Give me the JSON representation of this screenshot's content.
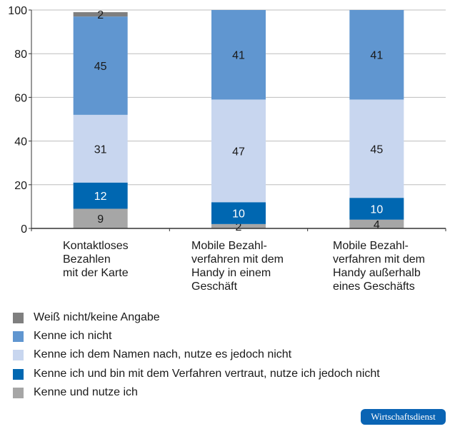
{
  "chart_data": {
    "type": "bar",
    "stacked": true,
    "categories": [
      "Kontaktloses\nBezahlen\nmit der Karte",
      "Mobile Bezahl-\nverfahren mit dem\nHandy in einem\nGeschäft",
      "Mobile Bezahl-\nverfahren mit dem\nHandy außerhalb\neines Geschäfts"
    ],
    "series": [
      {
        "name": "Kenne und nutze ich",
        "values": [
          9,
          2,
          4
        ],
        "color": "#a6a6a6",
        "label_color": "#1a1a1a"
      },
      {
        "name": "Kenne ich und bin mit dem Verfahren vertraut, nutze ich jedoch nicht",
        "values": [
          12,
          10,
          10
        ],
        "color": "#0067b1",
        "label_color": "#ffffff"
      },
      {
        "name": "Kenne ich dem Namen nach, nutze es jedoch nicht",
        "values": [
          31,
          47,
          45
        ],
        "color": "#c8d6ef",
        "label_color": "#1a1a1a"
      },
      {
        "name": "Kenne ich nicht",
        "values": [
          45,
          41,
          41
        ],
        "color": "#6096d0",
        "label_color": "#1a1a1a"
      },
      {
        "name": "Weiß nicht/keine Angabe",
        "values": [
          2,
          0,
          0
        ],
        "color": "#7f7f7f",
        "label_color": "#1a1a1a"
      }
    ],
    "legend_order": [
      4,
      3,
      2,
      1,
      0
    ],
    "yticks": [
      0,
      20,
      40,
      60,
      80,
      100
    ],
    "ylim": [
      0,
      100
    ],
    "grid": true,
    "legend": "bottom-left",
    "xlabel": "",
    "ylabel": "",
    "title": ""
  },
  "source_logo": "Wirtschaftsdienst"
}
